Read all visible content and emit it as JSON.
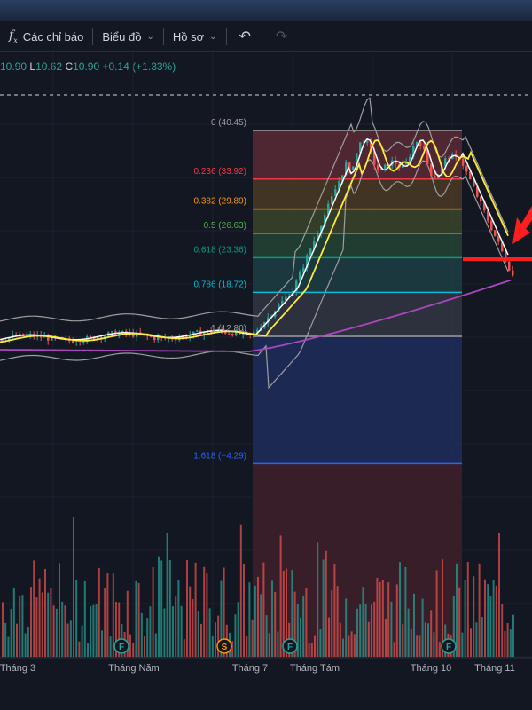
{
  "toolbar": {
    "indicators_label": "Các chỉ báo",
    "chart_type_label": "Biểu đồ",
    "profile_label": "Hồ sơ",
    "icons": [
      "fx-icon",
      "chevron-down-icon",
      "undo-icon",
      "redo-icon"
    ]
  },
  "ohlc": {
    "open_value": "10.90",
    "low_key": "L",
    "low_value": "10.62",
    "close_key": "C",
    "close_value": "10.90",
    "change": "+0.14 (+1.33%)"
  },
  "fib_levels": [
    {
      "label": "0 (40.45)",
      "color": "#9e9e9e",
      "price": 40.45
    },
    {
      "label": "0.236 (33.92)",
      "color": "#f23645",
      "price": 33.92
    },
    {
      "label": "0.382 (29.89)",
      "color": "#ff9800",
      "price": 29.89
    },
    {
      "label": "0.5 (26.63)",
      "color": "#4caf50",
      "price": 26.63
    },
    {
      "label": "0.618 (23.36)",
      "color": "#089981",
      "price": 23.36
    },
    {
      "label": "0.786 (18.72)",
      "color": "#00bcd4",
      "price": 18.72
    },
    {
      "label": "1 (12.80)",
      "color": "#9e9e9e",
      "price": 12.8
    },
    {
      "label": "1.618 (−4.29)",
      "color": "#2962ff",
      "price": -4.29
    }
  ],
  "time_axis": [
    "Tháng 3",
    "Tháng Năm",
    "Tháng 7",
    "Tháng Tám",
    "Tháng 10",
    "Tháng 11"
  ],
  "event_markers": [
    {
      "letter": "F",
      "color": "#26a69a"
    },
    {
      "letter": "S",
      "color": "#ff9800"
    },
    {
      "letter": "F",
      "color": "#26a69a"
    },
    {
      "letter": "F",
      "color": "#26a69a"
    }
  ],
  "colors": {
    "up": "#26a69a",
    "down": "#ef5350",
    "ma_fast": "#ffffff",
    "ma_mid": "#ffeb3b",
    "ma_slow": "#ab47bc",
    "band": "#9e9e9e",
    "arrow": "#ff1e1e"
  }
}
